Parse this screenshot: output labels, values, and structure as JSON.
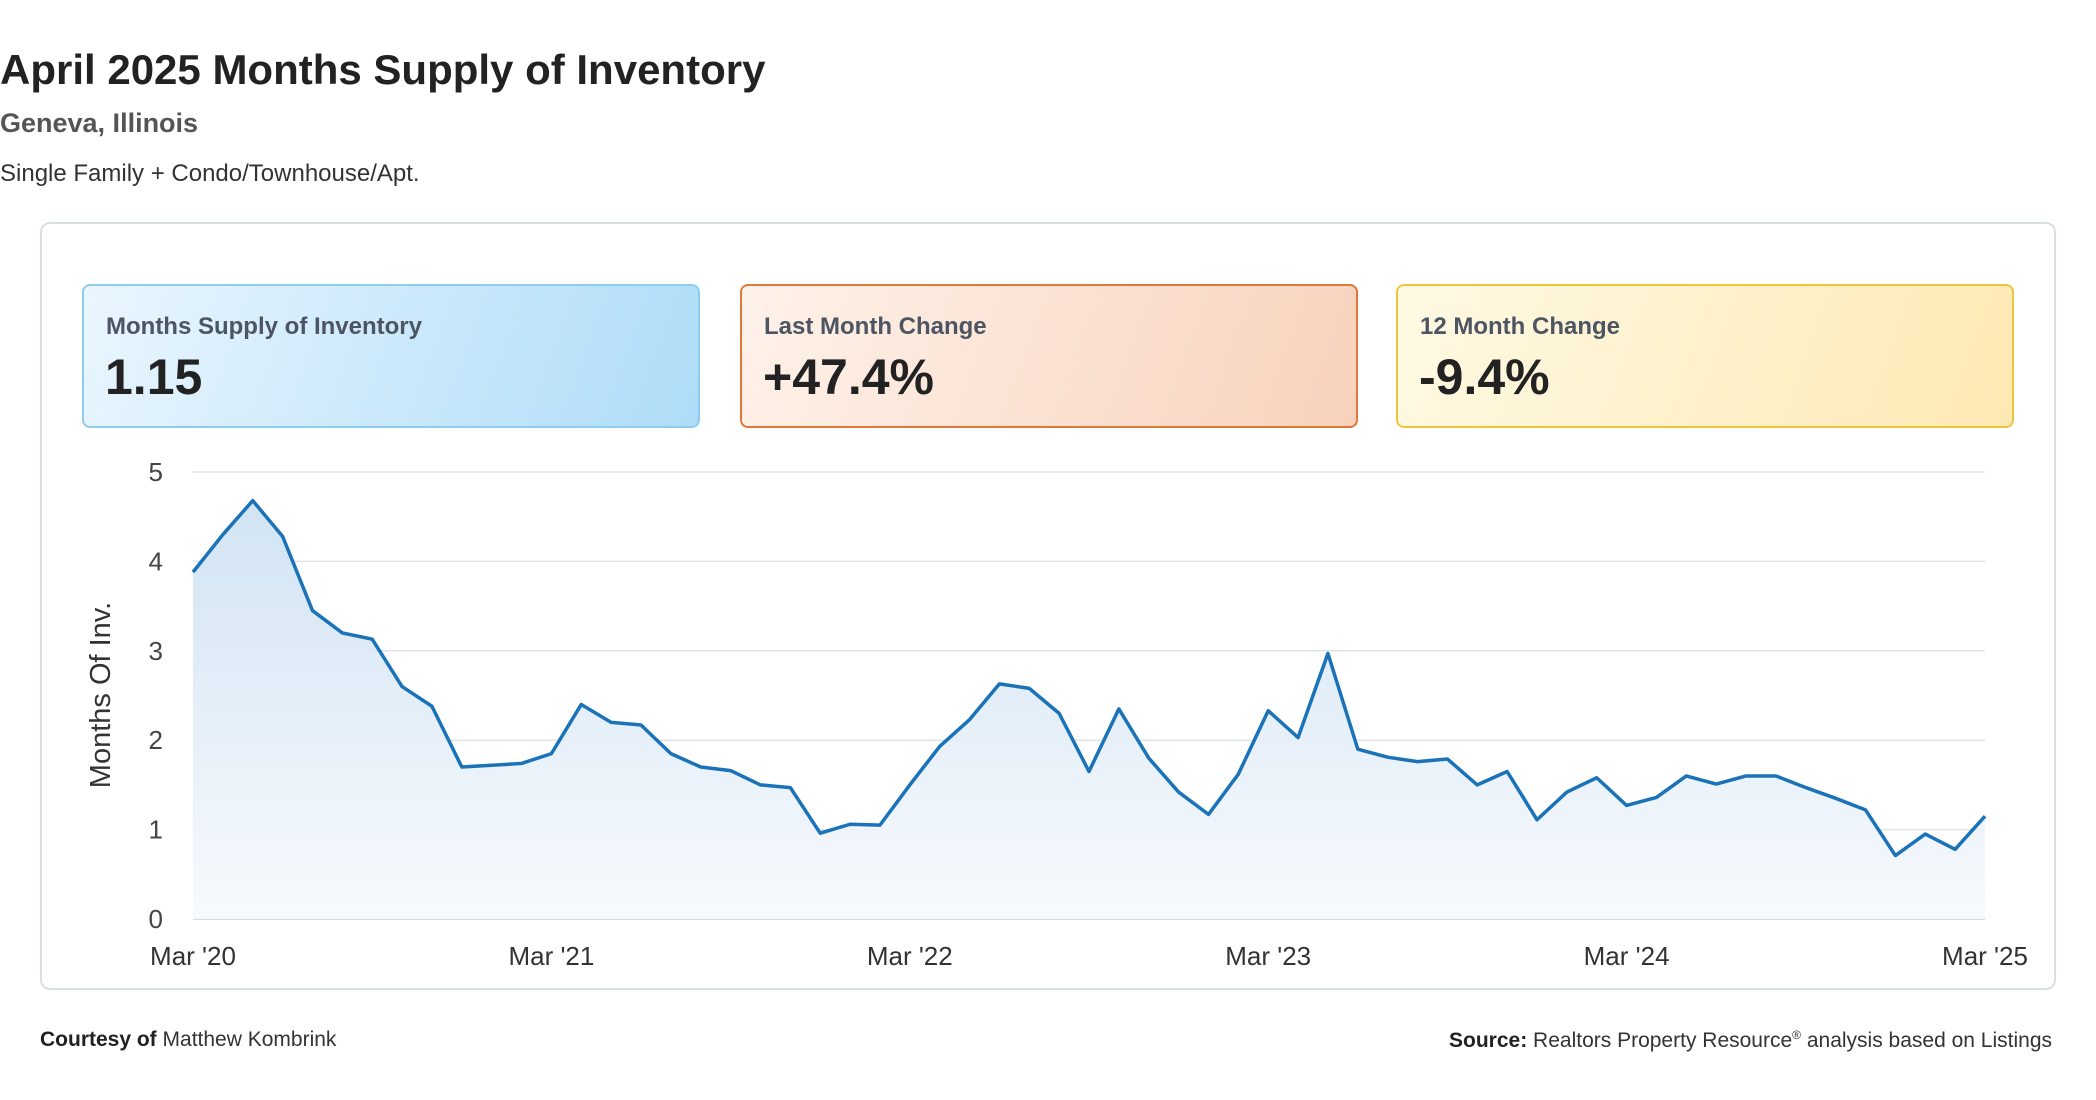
{
  "header": {
    "title": "April 2025 Months Supply of Inventory",
    "subtitle": "Geneva, Illinois",
    "segment": "Single Family + Condo/Townhouse/Apt."
  },
  "cards": [
    {
      "label": "Months Supply of Inventory",
      "value": "1.15",
      "accent": "#8fcdee"
    },
    {
      "label": "Last Month Change",
      "value": "+47.4%",
      "accent": "#e0783a"
    },
    {
      "label": "12 Month Change",
      "value": "-9.4%",
      "accent": "#f0c43c"
    }
  ],
  "chart_data": {
    "type": "area",
    "ylabel": "Months Of Inv.",
    "ylim": [
      0,
      5
    ],
    "yticks": [
      0,
      1,
      2,
      3,
      4,
      5
    ],
    "xticks": [
      "Mar '20",
      "Mar '21",
      "Mar '22",
      "Mar '23",
      "Mar '24",
      "Mar '25"
    ],
    "x_start": "Mar 2020",
    "x_end": "Mar 2025",
    "grid": true,
    "line_color": "#1a72b8",
    "fill_color": "#dbe9f6",
    "series": [
      {
        "values": [
          3.88,
          4.3,
          4.68,
          4.28,
          3.45,
          3.2,
          3.13,
          2.6,
          2.38,
          1.7,
          1.72,
          1.74,
          1.85,
          2.4,
          2.2,
          2.17,
          1.85,
          1.7,
          1.66,
          1.5,
          1.47,
          0.96,
          1.06,
          1.05,
          1.5,
          1.93,
          2.23,
          2.63,
          2.58,
          2.3,
          1.65,
          2.35,
          1.8,
          1.42,
          1.17,
          1.62,
          2.33,
          2.03,
          2.97,
          1.9,
          1.81,
          1.76,
          1.79,
          1.5,
          1.65,
          1.11,
          1.42,
          1.58,
          1.27,
          1.36,
          1.6,
          1.51,
          1.6,
          1.6,
          1.47,
          1.35,
          1.22,
          0.71,
          0.95,
          0.78,
          1.15
        ]
      }
    ]
  },
  "footer": {
    "courtesy_label": "Courtesy of",
    "courtesy_name": "Matthew Kombrink",
    "source_label": "Source:",
    "source_text": "Realtors Property Resource",
    "source_mark": "®",
    "source_suffix": "analysis based on Listings"
  }
}
